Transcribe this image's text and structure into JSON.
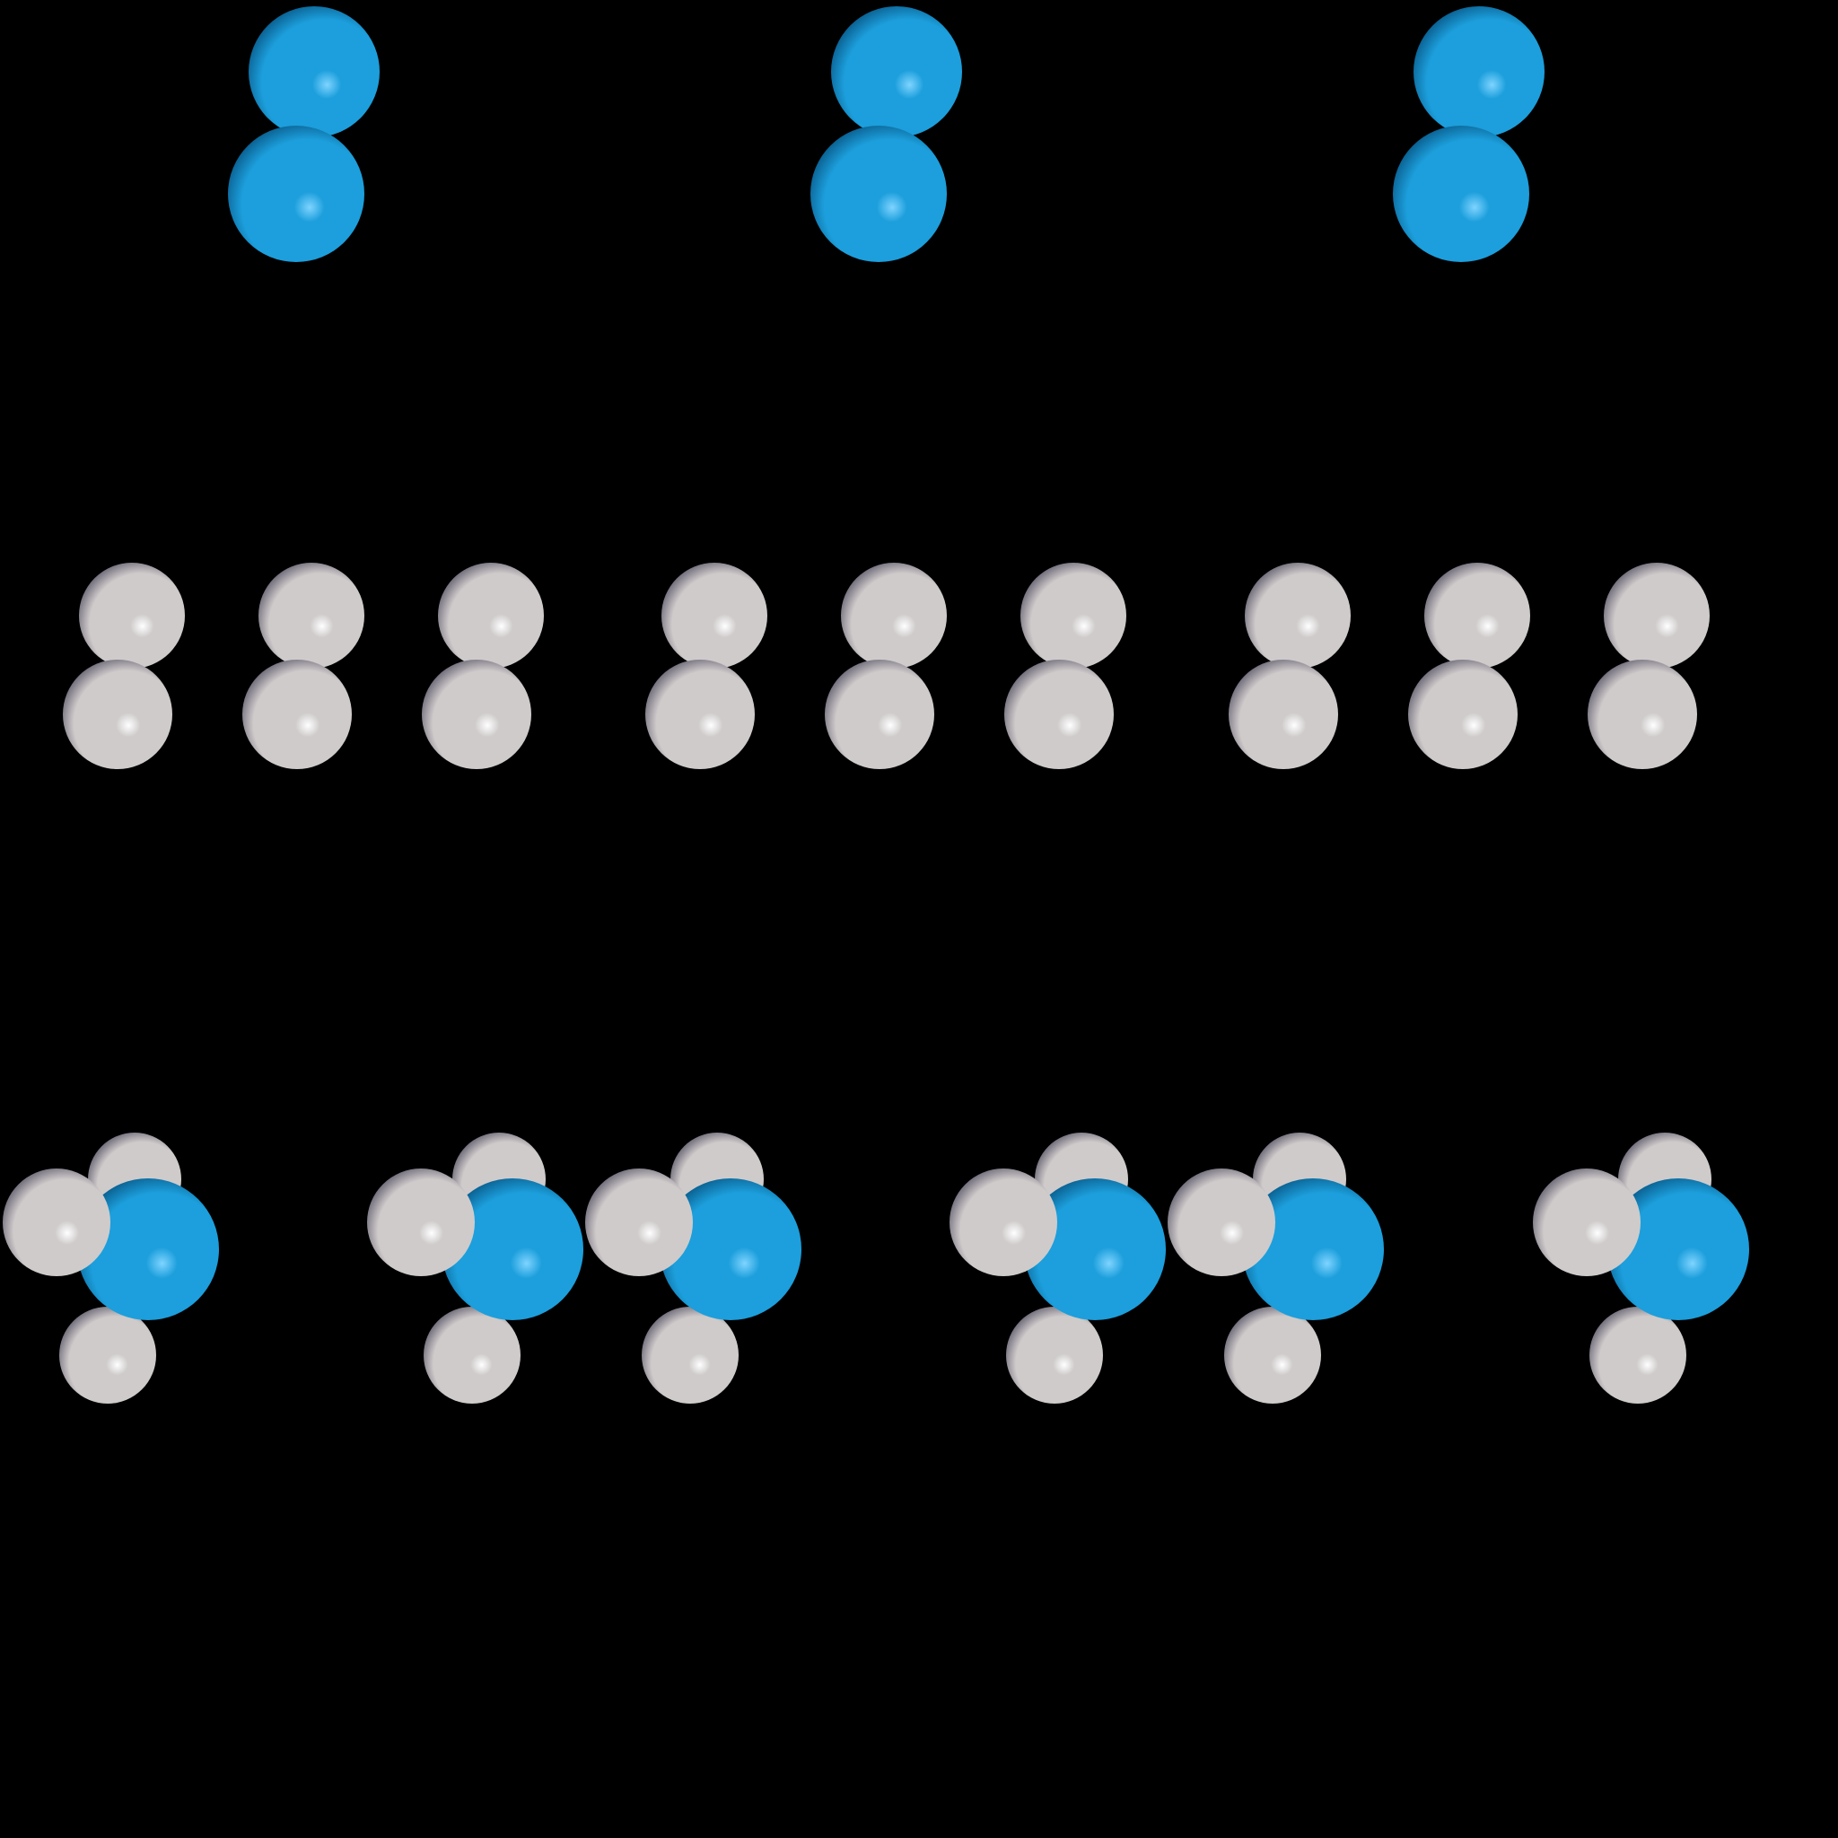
{
  "background_color": "#000000",
  "atom_colors": {
    "nitrogen": {
      "highlight": "#7fd4ff",
      "base": "#1c9fdc",
      "shade": "#0a5f8f"
    },
    "hydrogen": {
      "highlight": "#ffffff",
      "base": "#cfcbcb",
      "shade": "#6e6a78"
    }
  },
  "rows": [
    {
      "id": "nitrogen-molecules",
      "molecule": "N2",
      "count": 3,
      "atom": "nitrogen"
    },
    {
      "id": "hydrogen-molecules",
      "molecule": "H2",
      "count": 9,
      "atom": "hydrogen"
    },
    {
      "id": "ammonia-molecules",
      "molecule": "NH3",
      "count": 6,
      "atoms": [
        "nitrogen",
        "hydrogen"
      ]
    }
  ]
}
